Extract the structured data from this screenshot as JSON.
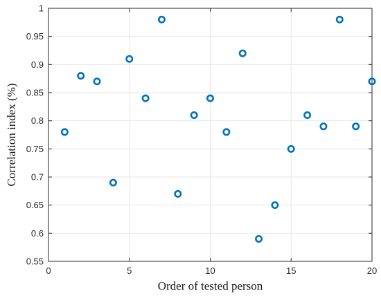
{
  "chart_data": {
    "type": "scatter",
    "title": "",
    "xlabel": "Order of tested person",
    "ylabel": "Correlation index (%)",
    "xlim": [
      0,
      20
    ],
    "ylim": [
      0.55,
      1
    ],
    "xticks": [
      0,
      5,
      10,
      15,
      20
    ],
    "xtick_labels": [
      "0",
      "5",
      "10",
      "15",
      "20"
    ],
    "yticks": [
      0.55,
      0.6,
      0.65,
      0.7,
      0.75,
      0.8,
      0.85,
      0.9,
      0.95,
      1
    ],
    "ytick_labels": [
      "0.55",
      "0.6",
      "0.65",
      "0.7",
      "0.75",
      "0.8",
      "0.85",
      "0.9",
      "0.95",
      "1"
    ],
    "grid": true,
    "marker": "open-circle",
    "marker_color": "#0072BD",
    "series": [
      {
        "x": [
          1,
          2,
          3,
          4,
          5,
          6,
          7,
          8,
          9,
          10,
          11,
          12,
          13,
          14,
          15,
          16,
          17,
          18,
          19,
          20
        ],
        "values": [
          0.78,
          0.88,
          0.87,
          0.69,
          0.91,
          0.84,
          0.98,
          0.67,
          0.81,
          0.84,
          0.78,
          0.92,
          0.59,
          0.65,
          0.75,
          0.81,
          0.79,
          0.98,
          0.79,
          0.87
        ]
      }
    ]
  }
}
